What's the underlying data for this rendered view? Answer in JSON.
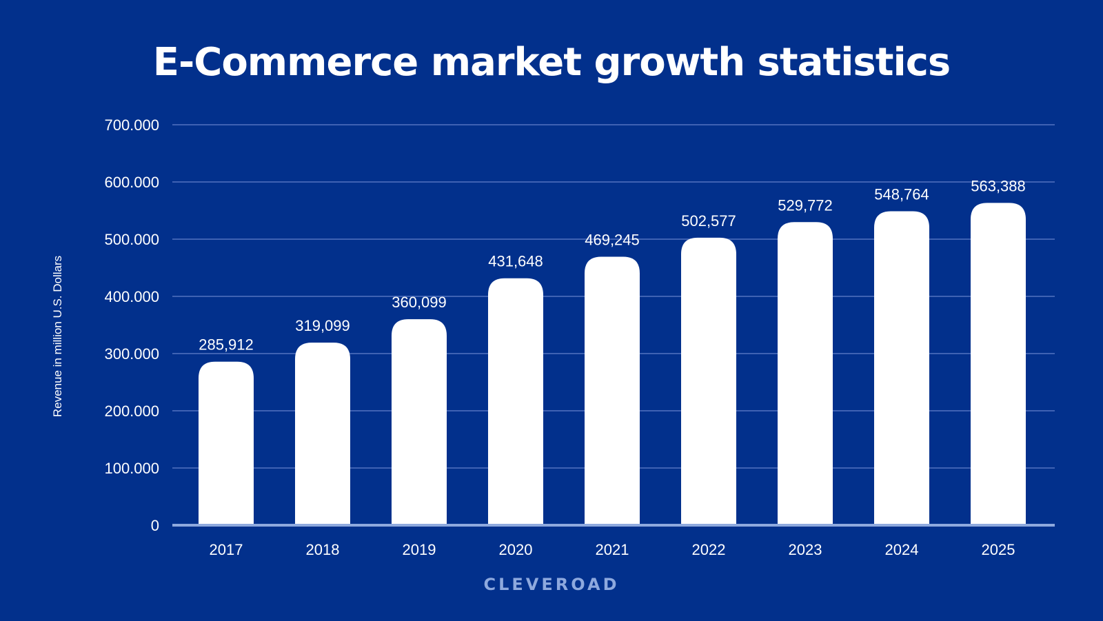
{
  "colors": {
    "background": "#02308c",
    "bar": "#ffffff",
    "gridline": "#3f62b3",
    "baseline": "#8ea9de",
    "text": "#ffffff",
    "brand": "#8ea9de"
  },
  "brand": "CLEVEROAD",
  "chart_data": {
    "type": "bar",
    "title": "E-Commerce market growth statistics",
    "xlabel": "",
    "ylabel": "Revenue in million U.S. Dollars",
    "categories": [
      "2017",
      "2018",
      "2019",
      "2020",
      "2021",
      "2022",
      "2023",
      "2024",
      "2025"
    ],
    "values": [
      285912,
      319099,
      360099,
      431648,
      469245,
      502577,
      529772,
      548764,
      563388
    ],
    "value_labels": [
      "285,912",
      "319,099",
      "360,099",
      "431,648",
      "469,245",
      "502,577",
      "529,772",
      "548,764",
      "563,388"
    ],
    "ylim": [
      0,
      700000
    ],
    "yticks": [
      0,
      100000,
      200000,
      300000,
      400000,
      500000,
      600000,
      700000
    ],
    "ytick_labels": [
      "0",
      "100.000",
      "200.000",
      "300.000",
      "400.000",
      "500.000",
      "600.000",
      "700.000"
    ],
    "grid": true,
    "legend": "none"
  }
}
